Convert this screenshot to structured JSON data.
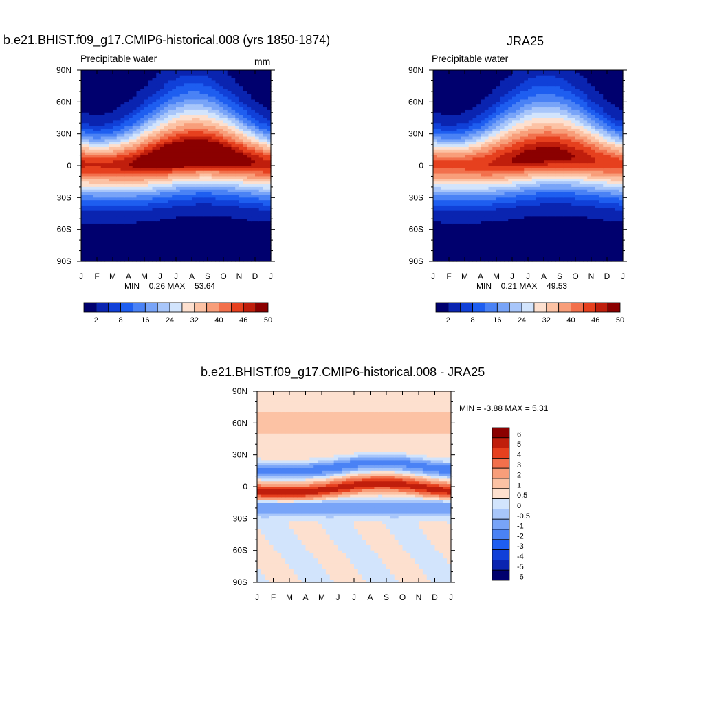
{
  "panels": {
    "model": {
      "title": "b.e21.BHIST.f09_g17.CMIP6-historical.008 (yrs 1850-1874)",
      "variable": "Precipitable water",
      "units": "mm",
      "stats": "MIN =   0.26 MAX =  53.64"
    },
    "obs": {
      "title": "JRA25",
      "variable": "Precipitable water",
      "stats": "MIN =   0.21 MAX =  49.53"
    },
    "diff": {
      "title": "b.e21.BHIST.f09_g17.CMIP6-historical.008 - JRA25",
      "stats": "MIN =  -3.88 MAX =   5.31"
    }
  },
  "chart_data": [
    {
      "type": "heatmap",
      "title": "b.e21.BHIST.f09_g17.CMIP6-historical.008 (yrs 1850-1874)",
      "subtitle": "Precipitable water",
      "units": "mm",
      "x_ticks": [
        "J",
        "F",
        "M",
        "A",
        "M",
        "J",
        "J",
        "A",
        "S",
        "O",
        "N",
        "D",
        "J"
      ],
      "y_ticks": [
        "90N",
        "60N",
        "30N",
        "0",
        "30S",
        "60S",
        "90S"
      ],
      "ylim": [
        -90,
        90
      ],
      "min": 0.26,
      "max": 53.64,
      "colorbar_labels": [
        "2",
        "8",
        "16",
        "24",
        "32",
        "40",
        "46",
        "50"
      ],
      "note": "annual cycle of zonal-mean precipitable water; maximum ~53 mm near 10N in Jul-Sep"
    },
    {
      "type": "heatmap",
      "title": "JRA25",
      "subtitle": "Precipitable water",
      "x_ticks": [
        "J",
        "F",
        "M",
        "A",
        "M",
        "J",
        "J",
        "A",
        "S",
        "O",
        "N",
        "D",
        "J"
      ],
      "y_ticks": [
        "90N",
        "60N",
        "30N",
        "0",
        "30S",
        "60S",
        "90S"
      ],
      "ylim": [
        -90,
        90
      ],
      "min": 0.21,
      "max": 49.53,
      "colorbar_labels": [
        "2",
        "8",
        "16",
        "24",
        "32",
        "40",
        "46",
        "50"
      ]
    },
    {
      "type": "heatmap",
      "title": "b.e21.BHIST.f09_g17.CMIP6-historical.008 - JRA25",
      "x_ticks": [
        "J",
        "F",
        "M",
        "A",
        "M",
        "J",
        "J",
        "A",
        "S",
        "O",
        "N",
        "D",
        "J"
      ],
      "y_ticks": [
        "90N",
        "60N",
        "30N",
        "0",
        "30S",
        "60S",
        "90S"
      ],
      "ylim": [
        -90,
        90
      ],
      "min": -3.88,
      "max": 5.31,
      "colorbar_labels": [
        "6",
        "5",
        "4",
        "3",
        "2",
        "1",
        "0.5",
        "0",
        "-0.5",
        "-1",
        "-2",
        "-3",
        "-4",
        "-5",
        "-6"
      ]
    }
  ],
  "colors": {
    "seq": [
      "#00006e",
      "#0a24b0",
      "#1040d8",
      "#1e5ef0",
      "#4a82f5",
      "#78a4f8",
      "#a8c6fa",
      "#d2e4fc",
      "#fde0cf",
      "#fcc2a4",
      "#f89e7a",
      "#f2704c",
      "#e6401e",
      "#c01e0c",
      "#8b0000"
    ],
    "div": [
      "#8b0000",
      "#c01e0c",
      "#e6401e",
      "#f2704c",
      "#f89e7a",
      "#fcc2a4",
      "#fde0cf",
      "#d2e4fc",
      "#a8c6fa",
      "#78a4f8",
      "#4a82f5",
      "#1e5ef0",
      "#1040d8",
      "#0a24b0",
      "#00006e"
    ]
  }
}
